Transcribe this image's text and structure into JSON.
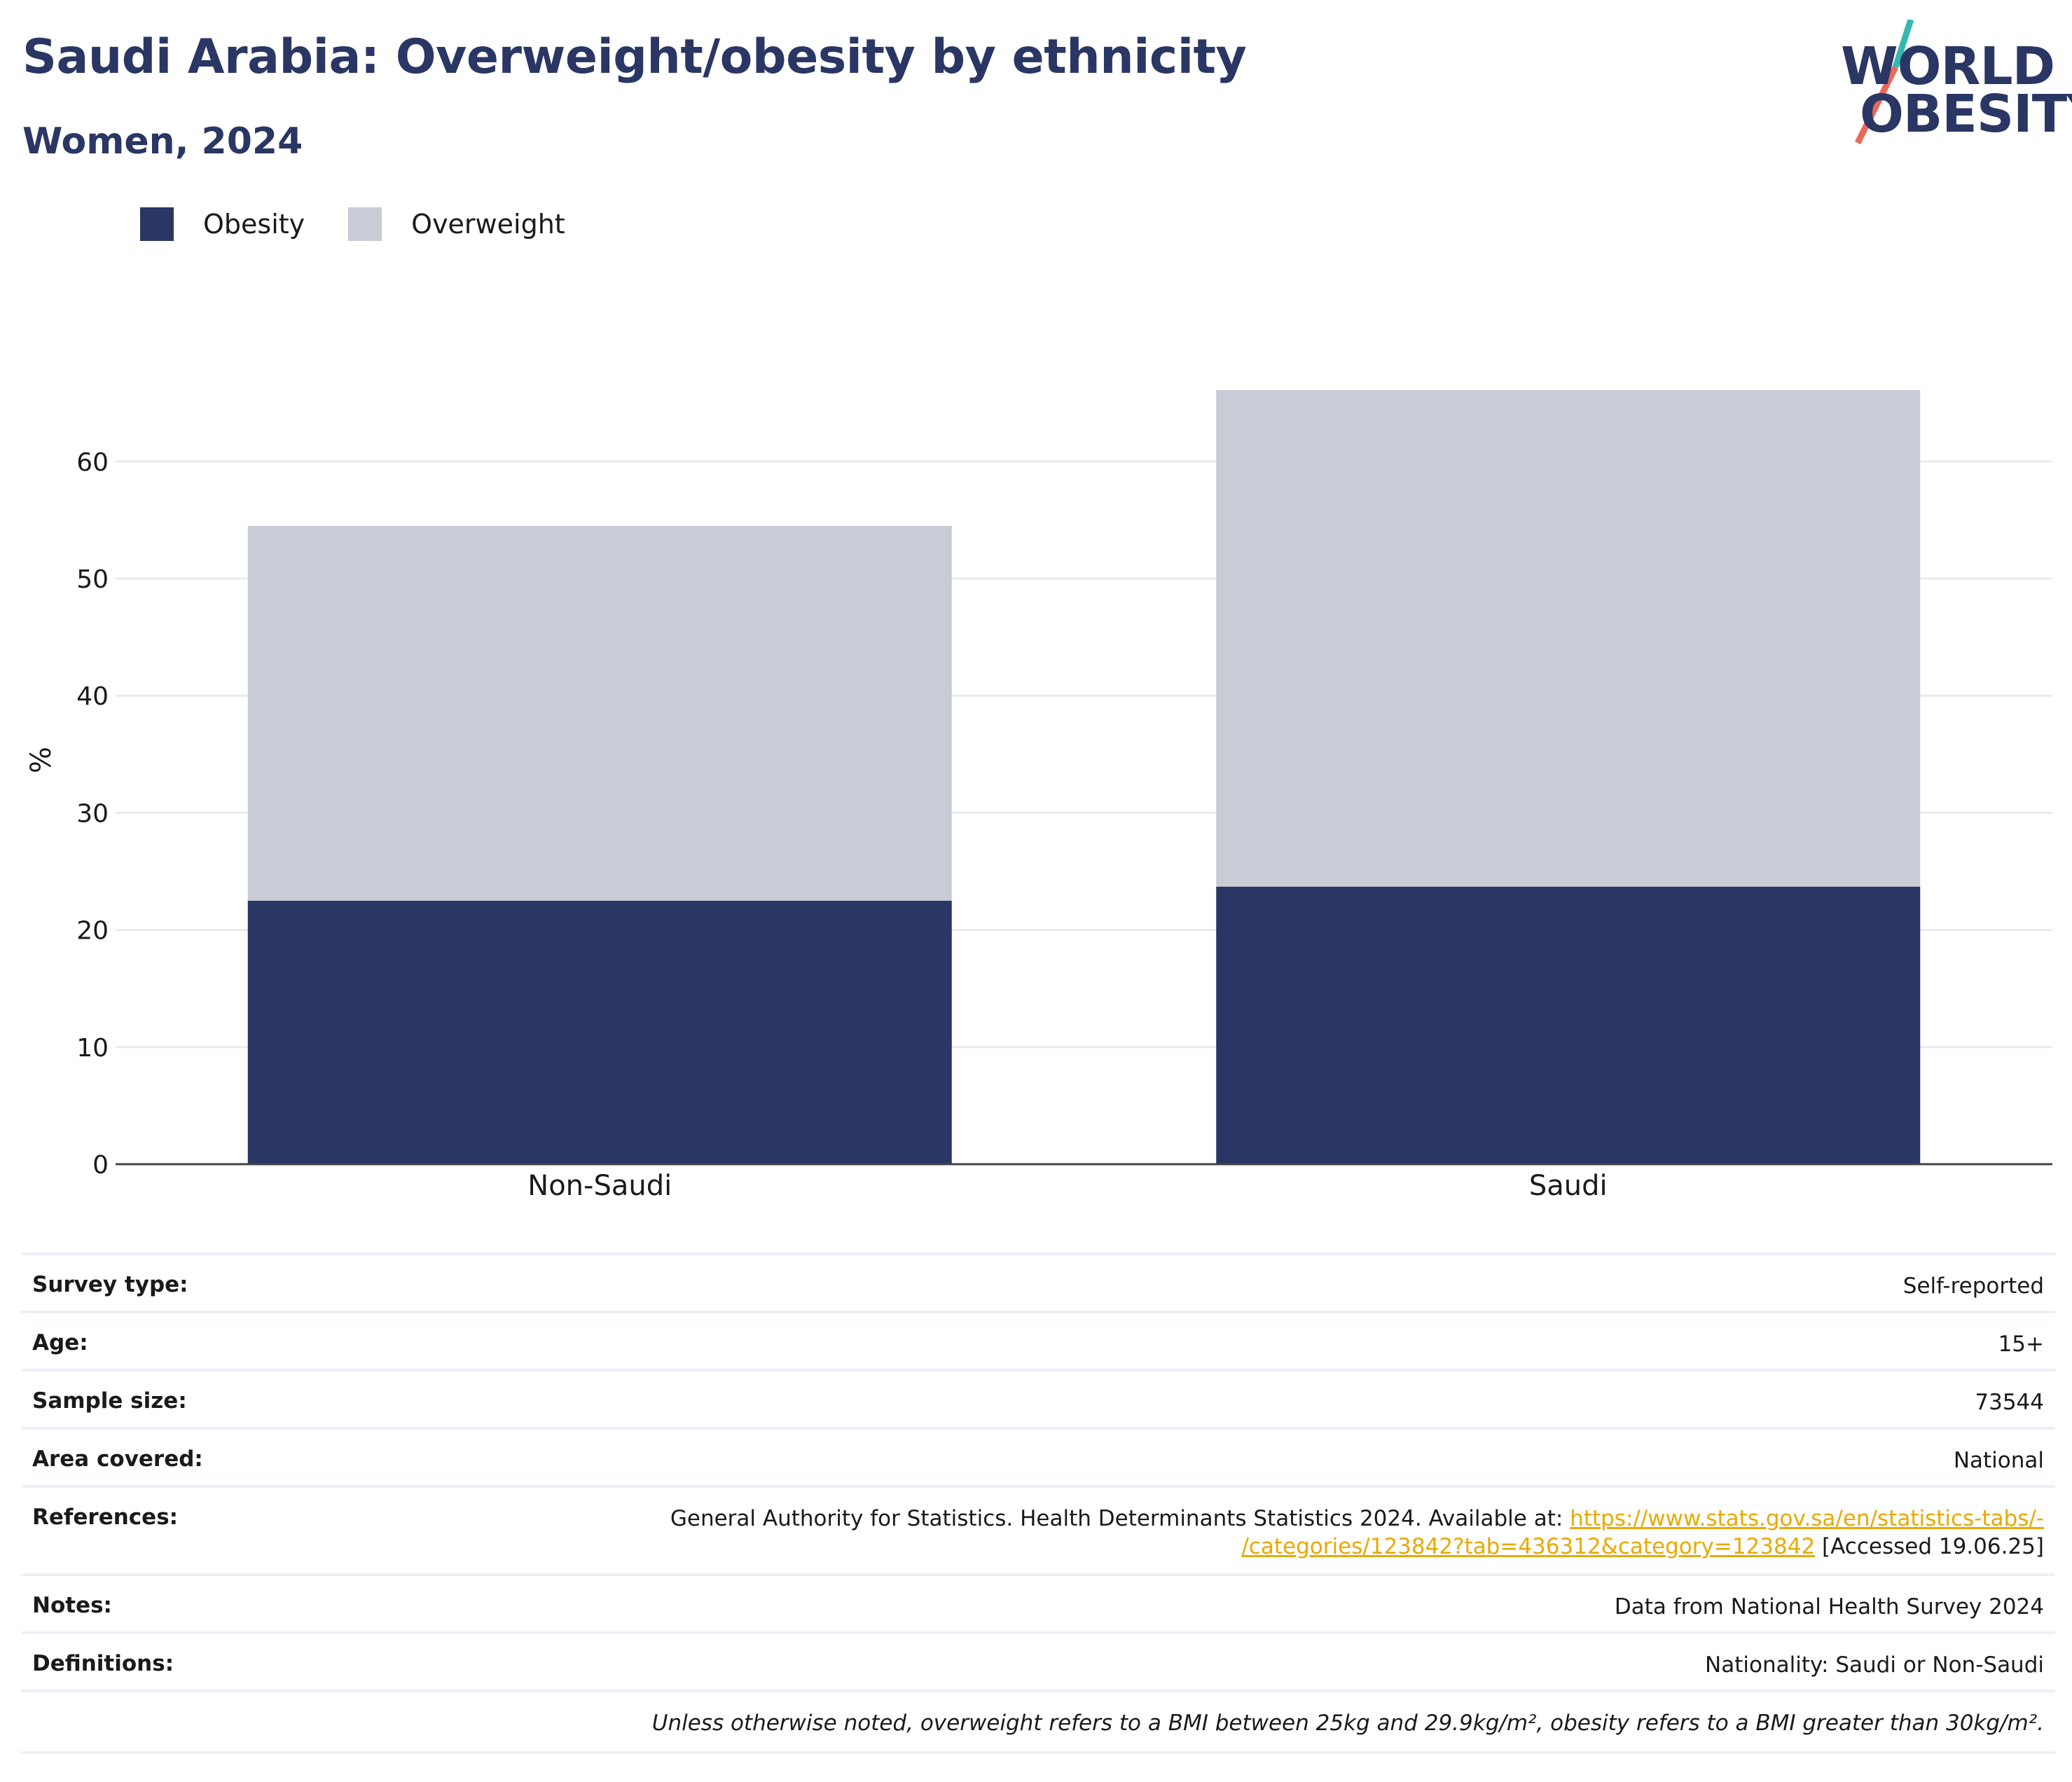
{
  "header": {
    "title": "Saudi Arabia: Overweight/obesity by ethnicity",
    "subtitle": "Women, 2024"
  },
  "logo": {
    "line1": "WORLD",
    "line2": "OBESITY",
    "slash_colors": [
      "#36b8b0",
      "#e8685a"
    ]
  },
  "legend": [
    {
      "label": "Obesity",
      "color": "#2a3663"
    },
    {
      "label": "Overweight",
      "color": "#c9cbd6"
    }
  ],
  "chart_data": {
    "type": "bar",
    "stacked": true,
    "categories": [
      "Non-Saudi",
      "Saudi"
    ],
    "series": [
      {
        "name": "Obesity",
        "values": [
          22.5,
          23.7
        ],
        "color": "#2a3663"
      },
      {
        "name": "Overweight",
        "values": [
          32.0,
          42.4
        ],
        "color": "#c9cbd6"
      }
    ],
    "ylabel": "%",
    "ylim": [
      0,
      70
    ],
    "yticks": [
      0,
      10,
      20,
      30,
      40,
      50,
      60
    ],
    "grid": true,
    "legend_position": "top-left"
  },
  "info": {
    "survey_type": {
      "label": "Survey type:",
      "value": "Self-reported"
    },
    "age": {
      "label": "Age:",
      "value": "15+"
    },
    "sample_size": {
      "label": "Sample size:",
      "value": "73544"
    },
    "area": {
      "label": "Area covered:",
      "value": "National"
    },
    "references": {
      "label": "References:",
      "text_before": "General Authority for Statistics. Health Determinants Statistics 2024. Available at: ",
      "link_line1": "https://www.stats.gov.sa/en/statistics-tabs/-",
      "link_line2": "/categories/123842?tab=436312&category=123842",
      "text_after": " [Accessed 19.06.25]"
    },
    "notes": {
      "label": "Notes:",
      "value": "Data from National Health Survey 2024"
    },
    "definitions": {
      "label": "Definitions:",
      "value": "Nationality: Saudi or Non-Saudi"
    },
    "footnote": "Unless otherwise noted, overweight refers to a BMI between 25kg and 29.9kg/m², obesity refers to a BMI greater than 30kg/m²."
  }
}
